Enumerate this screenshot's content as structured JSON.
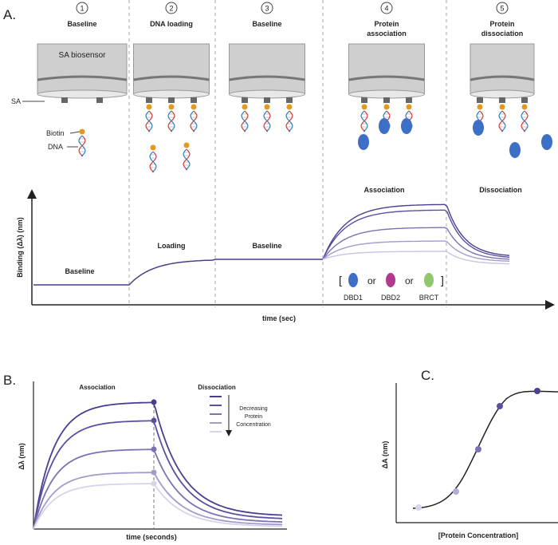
{
  "panel_a": {
    "label": "A.",
    "steps": [
      {
        "number": "1",
        "title": [
          "Baseline"
        ]
      },
      {
        "number": "2",
        "title": [
          "DNA loading"
        ]
      },
      {
        "number": "3",
        "title": [
          "Baseline"
        ]
      },
      {
        "number": "4",
        "title": [
          "Protein",
          "association"
        ]
      },
      {
        "number": "5",
        "title": [
          "Protein",
          "dissociation"
        ]
      }
    ],
    "sensor_label": "SA biosensor",
    "sa_label": "SA",
    "biotin_label": "Biotin",
    "dna_label": "DNA",
    "phase_labels": [
      "Baseline",
      "Loading",
      "Baseline",
      "Association",
      "Dissociation"
    ],
    "y_axis": "Binding (Δλ) (nm)",
    "x_axis": "time (sec)",
    "proteins": {
      "open": "[",
      "separator": "or",
      "close": "]",
      "names": [
        "DBD1",
        "DBD2",
        "BRCT"
      ]
    }
  },
  "panel_b": {
    "label": "B.",
    "association": "Association",
    "dissociation": "Dissociation",
    "legend": [
      "Decreasing",
      "Protein",
      "Concentration"
    ],
    "y_axis": "Δλ (nm)",
    "x_axis": "time (seconds)"
  },
  "panel_c": {
    "label": "C.",
    "y_axis": "ΔA (nm)",
    "x_axis": "[Protein Concentration]"
  }
}
